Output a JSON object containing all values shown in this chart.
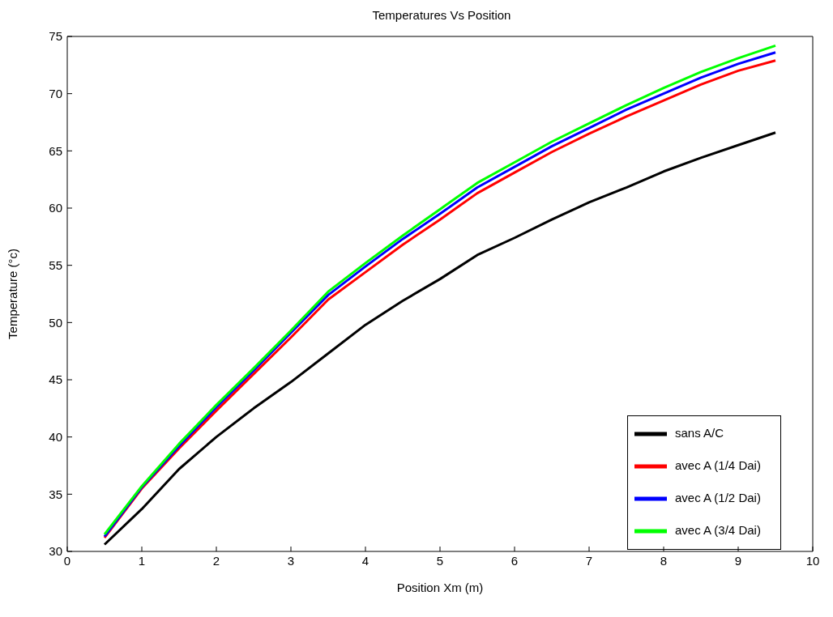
{
  "chart_data": {
    "type": "line",
    "title": "Temperatures Vs Position",
    "xlabel": "Position Xm (m)",
    "ylabel": "Temperature (°c)",
    "x": [
      0.5,
      1,
      1.5,
      2,
      2.5,
      3,
      3.5,
      4,
      4.5,
      5,
      5.5,
      6,
      6.5,
      7,
      7.5,
      8,
      8.5,
      9,
      9.5
    ],
    "series": [
      {
        "name": "sans A/C",
        "color": "#000000",
        "values": [
          30.6,
          33.7,
          37.2,
          40,
          42.5,
          44.8,
          47.3,
          49.8,
          51.9,
          53.8,
          55.9,
          57.4,
          59,
          60.5,
          61.8,
          63.2,
          64.4,
          65.5,
          66.6
        ]
      },
      {
        "name": "avec A (1/4 Dai)",
        "color": "#ff0000",
        "values": [
          31.2,
          35.5,
          39,
          42.3,
          45.5,
          48.7,
          52,
          54.4,
          56.8,
          59,
          61.3,
          63.1,
          64.9,
          66.5,
          68,
          69.4,
          70.8,
          72,
          72.9
        ]
      },
      {
        "name": "avec A (1/2 Dai)",
        "color": "#0000ff",
        "values": [
          31.3,
          35.6,
          39.2,
          42.6,
          45.8,
          49.1,
          52.4,
          54.9,
          57.3,
          59.5,
          61.8,
          63.6,
          65.4,
          67,
          68.6,
          70,
          71.4,
          72.6,
          73.6
        ]
      },
      {
        "name": "avec A (3/4 Dai)",
        "color": "#00ff00",
        "values": [
          31.5,
          35.7,
          39.4,
          42.8,
          46,
          49.3,
          52.7,
          55.2,
          57.6,
          59.9,
          62.2,
          64,
          65.8,
          67.4,
          69,
          70.5,
          71.9,
          73.1,
          74.2
        ]
      }
    ],
    "xlim": [
      0,
      10
    ],
    "xticks": [
      0,
      1,
      2,
      3,
      4,
      5,
      6,
      7,
      8,
      9,
      10
    ],
    "ylim": [
      30,
      75
    ],
    "yticks": [
      30,
      35,
      40,
      45,
      50,
      55,
      60,
      65,
      70,
      75
    ],
    "grid": false,
    "legend": "bottom right",
    "marker": "none",
    "line_style": "solid"
  }
}
